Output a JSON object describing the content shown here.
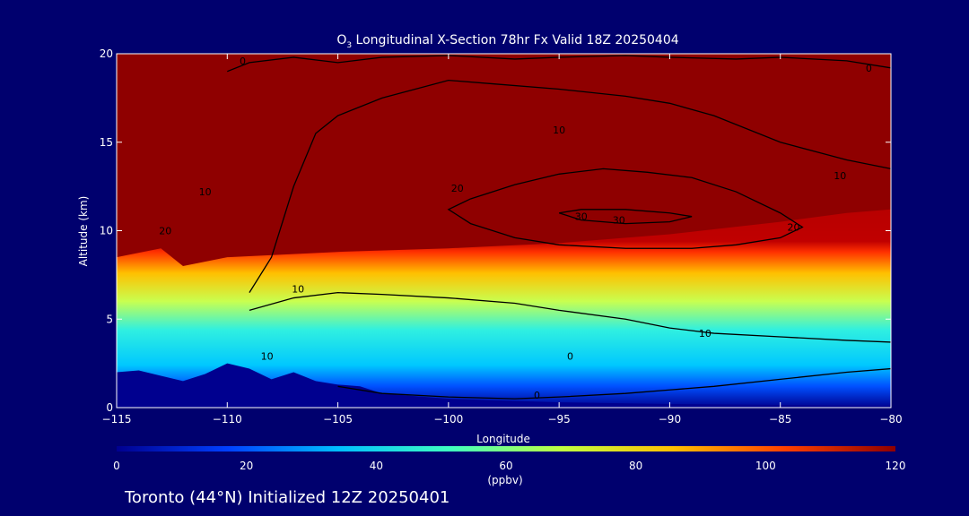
{
  "chart_data": {
    "type": "heatmap",
    "title": "O3 Longitudinal X-Section 78hr  Fx Valid 18Z 20250404",
    "title_parts": {
      "pre": "O",
      "sub": "3",
      "post": " Longitudinal X-Section 78hr  Fx Valid 18Z 20250404"
    },
    "xlabel": "Longitude",
    "ylabel": "Altitude (km)",
    "xlim": [
      -115,
      -80
    ],
    "ylim": [
      0,
      20
    ],
    "x_ticks": [
      -115,
      -110,
      -105,
      -100,
      -95,
      -90,
      -85,
      -80
    ],
    "x_tick_labels": [
      "−115",
      "−110",
      "−105",
      "−100",
      "−95",
      "−90",
      "−85",
      "−80"
    ],
    "y_ticks": [
      0,
      5,
      10,
      15,
      20
    ],
    "y_tick_labels": [
      "0",
      "5",
      "10",
      "15",
      "20"
    ],
    "colorbar": {
      "label": "(ppbv)",
      "range": [
        0,
        120
      ],
      "ticks": [
        0,
        20,
        40,
        60,
        80,
        100,
        120
      ],
      "tick_labels": [
        "0",
        "20",
        "40",
        "60",
        "80",
        "100",
        "120"
      ],
      "colors": [
        "#00008f",
        "#0040ff",
        "#00c0ff",
        "#40ffc0",
        "#c0ff40",
        "#ffc000",
        "#ff4000",
        "#8f0000"
      ]
    },
    "background_color": "#00006e",
    "terrain_color": "#00008f",
    "terrain": {
      "lon": [
        -115,
        -114,
        -113,
        -112,
        -111,
        -110,
        -109,
        -108,
        -107,
        -106,
        -105,
        -104,
        -103,
        -100,
        -95,
        -90,
        -85,
        -80
      ],
      "alt": [
        2.0,
        2.1,
        1.8,
        1.5,
        1.9,
        2.5,
        2.2,
        1.6,
        2.0,
        1.5,
        1.3,
        1.2,
        0.8,
        0.5,
        0.3,
        0.2,
        0.15,
        0.1
      ]
    },
    "tropopause_top": {
      "lon": [
        -115,
        -113,
        -112,
        -110,
        -105,
        -100,
        -95,
        -90,
        -85,
        -82,
        -80
      ],
      "alt": [
        8.5,
        9.0,
        8.0,
        8.5,
        8.8,
        9.0,
        9.3,
        9.8,
        10.5,
        11.0,
        11.2
      ]
    },
    "contours": [
      {
        "level": 0,
        "lon": [
          -110,
          -109,
          -107,
          -105,
          -103,
          -100,
          -97,
          -95,
          -92,
          -90,
          -87,
          -85,
          -82,
          -80
        ],
        "alt": [
          19.0,
          19.5,
          19.8,
          19.5,
          19.8,
          19.9,
          19.7,
          19.8,
          19.9,
          19.8,
          19.7,
          19.8,
          19.6,
          19.2
        ]
      },
      {
        "level": 10,
        "lon": [
          -109,
          -108,
          -107,
          -106,
          -105,
          -103,
          -100,
          -98,
          -95,
          -92,
          -90,
          -88,
          -85,
          -82,
          -80
        ],
        "alt": [
          6.5,
          8.5,
          12.5,
          15.5,
          16.5,
          17.5,
          18.5,
          18.3,
          18.0,
          17.6,
          17.2,
          16.5,
          15.0,
          14.0,
          13.5
        ]
      },
      {
        "level": 20,
        "lon": [
          -99,
          -97,
          -95,
          -93,
          -91,
          -89,
          -87,
          -85,
          -84,
          -85,
          -87,
          -89,
          -92,
          -95,
          -97,
          -99,
          -100,
          -99
        ],
        "alt": [
          11.8,
          12.6,
          13.2,
          13.5,
          13.3,
          13.0,
          12.2,
          11.0,
          10.2,
          9.6,
          9.2,
          9.0,
          9.0,
          9.2,
          9.6,
          10.4,
          11.2,
          11.8
        ]
      },
      {
        "level": 30,
        "lon": [
          -95,
          -94,
          -92,
          -90,
          -89,
          -90,
          -92,
          -94,
          -95
        ],
        "alt": [
          11.0,
          11.2,
          11.2,
          11.0,
          10.8,
          10.5,
          10.4,
          10.6,
          11.0
        ]
      },
      {
        "level": 10,
        "lon": [
          -109,
          -107,
          -105,
          -103,
          -100,
          -97,
          -95,
          -92,
          -90,
          -88,
          -85,
          -82,
          -80
        ],
        "alt": [
          5.5,
          6.2,
          6.5,
          6.4,
          6.2,
          5.9,
          5.5,
          5.0,
          4.5,
          4.2,
          4.0,
          3.8,
          3.7
        ]
      },
      {
        "level": 0,
        "lon": [
          -105,
          -103,
          -100,
          -97,
          -95,
          -92,
          -90,
          -88,
          -85,
          -82,
          -80
        ],
        "alt": [
          1.2,
          0.8,
          0.6,
          0.5,
          0.6,
          0.8,
          1.0,
          1.2,
          1.6,
          2.0,
          2.2
        ]
      }
    ],
    "contour_labels": [
      {
        "text": "0",
        "lon": -109.3,
        "alt": 19.4
      },
      {
        "text": "0",
        "lon": -81.0,
        "alt": 19.0
      },
      {
        "text": "10",
        "lon": -95.0,
        "alt": 15.5
      },
      {
        "text": "10",
        "lon": -82.3,
        "alt": 12.9
      },
      {
        "text": "20",
        "lon": -99.6,
        "alt": 12.2
      },
      {
        "text": "20",
        "lon": -84.4,
        "alt": 10.0
      },
      {
        "text": "30",
        "lon": -94.0,
        "alt": 10.6
      },
      {
        "text": "30",
        "lon": -92.3,
        "alt": 10.4
      },
      {
        "text": "10",
        "lon": -111.0,
        "alt": 12.0
      },
      {
        "text": "20",
        "lon": -112.8,
        "alt": 9.8
      },
      {
        "text": "10",
        "lon": -106.8,
        "alt": 6.5
      },
      {
        "text": "10",
        "lon": -88.4,
        "alt": 4.0
      },
      {
        "text": "0",
        "lon": -94.5,
        "alt": 2.7
      },
      {
        "text": "10",
        "lon": -108.2,
        "alt": 2.7
      },
      {
        "text": "0",
        "lon": -96.0,
        "alt": 0.5
      }
    ]
  },
  "caption": "Toronto (44°N) Initialized 12Z 20250401"
}
